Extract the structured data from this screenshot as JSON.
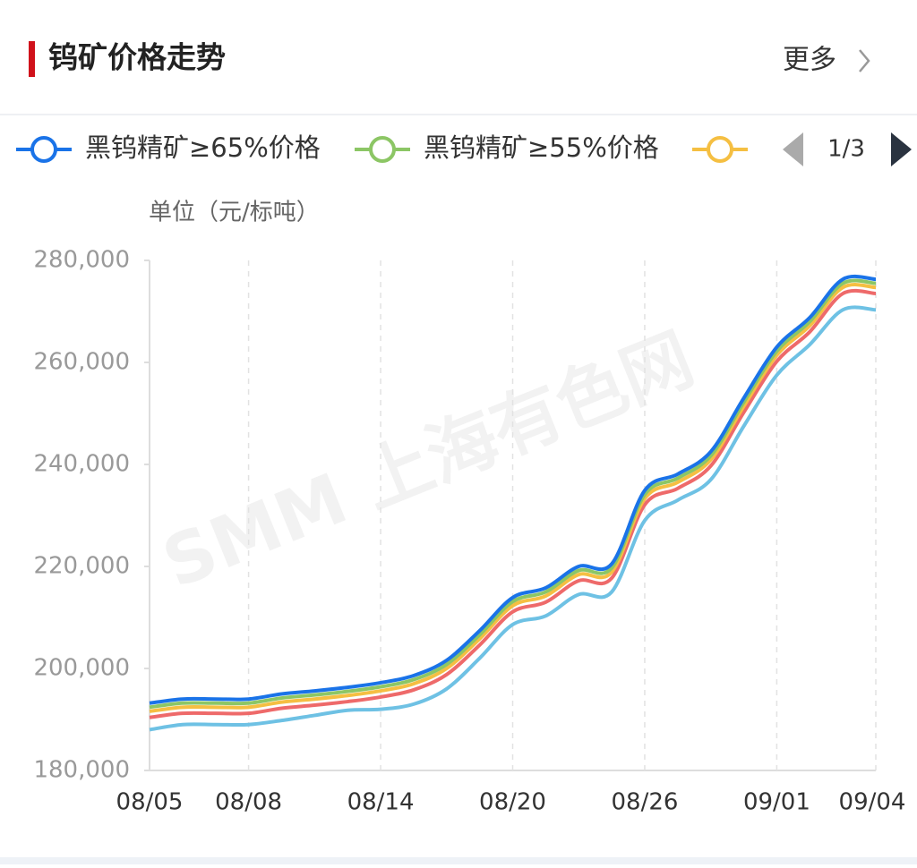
{
  "chart_data": {
    "type": "line",
    "title": "钨矿价格走势",
    "more": "更多",
    "legend_page": "1/3",
    "y_label": "单位（元/标吨）",
    "watermark": "SMM 上海有色网",
    "categories": [
      "08/05",
      null,
      null,
      "08/08",
      null,
      null,
      null,
      "08/14",
      null,
      null,
      null,
      "08/20",
      null,
      null,
      null,
      "08/26",
      null,
      null,
      null,
      "09/01",
      null,
      null,
      "09/04"
    ],
    "series": [
      {
        "name": "黑钨精矿≥65%价格",
        "color": "#1a73e8",
        "values": [
          193200,
          194000,
          194000,
          194000,
          195000,
          195600,
          196300,
          197200,
          198600,
          201600,
          207400,
          213900,
          215800,
          220000,
          220500,
          234900,
          238100,
          242500,
          253000,
          263000,
          268800,
          276300,
          276300
        ]
      },
      {
        "name": "黑钨精矿≥55%价格",
        "color": "#8cc665",
        "values": [
          192400,
          193200,
          193200,
          193200,
          194200,
          194800,
          195500,
          196400,
          197800,
          200800,
          206600,
          213100,
          215000,
          219200,
          219700,
          234100,
          237300,
          241700,
          252200,
          262200,
          268000,
          275500,
          275500
        ]
      },
      {
        "color": "#f5bf42",
        "values": [
          191600,
          192400,
          192400,
          192400,
          193400,
          194000,
          194700,
          195600,
          197000,
          200000,
          205800,
          212300,
          214200,
          218400,
          218900,
          233300,
          236500,
          240900,
          251400,
          261400,
          267200,
          274700,
          274700
        ]
      },
      {
        "color": "#ee6a6a",
        "values": [
          190400,
          191200,
          191200,
          191200,
          192200,
          192800,
          193500,
          194400,
          195800,
          198800,
          204600,
          211100,
          213000,
          217200,
          217700,
          232100,
          235300,
          239700,
          250200,
          260200,
          266000,
          273500,
          273500
        ]
      },
      {
        "color": "#6ec1e4",
        "values": [
          188000,
          189000,
          189000,
          189000,
          189800,
          190800,
          191800,
          192000,
          193000,
          196000,
          202000,
          208600,
          210300,
          214500,
          215000,
          229000,
          233000,
          237000,
          247500,
          257500,
          263500,
          270300,
          270300
        ]
      }
    ],
    "ylim": [
      180000,
      280000
    ],
    "yticks": [
      {
        "value": 180000,
        "label": "180,000"
      },
      {
        "value": 200000,
        "label": "200,000"
      },
      {
        "value": 220000,
        "label": "220,000"
      },
      {
        "value": 240000,
        "label": "240,000"
      },
      {
        "value": 260000,
        "label": "260,000"
      },
      {
        "value": 280000,
        "label": "280,000"
      }
    ],
    "grid": true
  }
}
